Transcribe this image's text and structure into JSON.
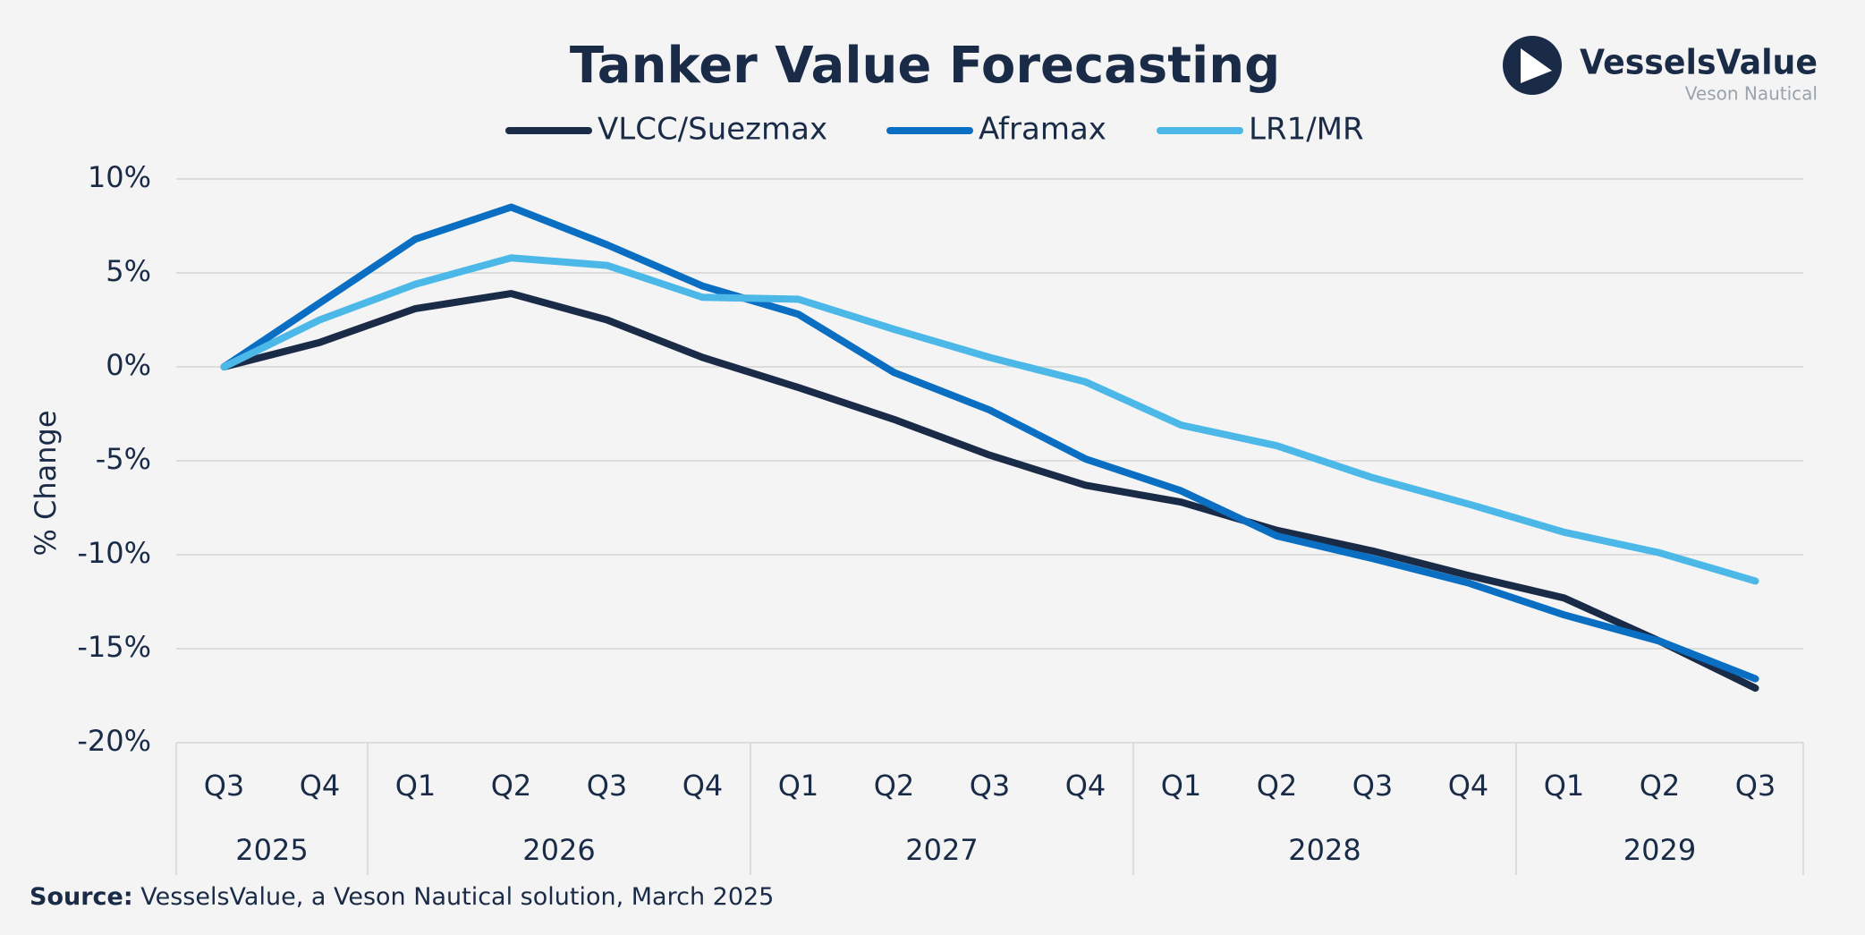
{
  "chart_data": {
    "type": "line",
    "title": "Tanker Value Forecasting",
    "y_label": "% Change",
    "categories": [
      "Q3",
      "Q4",
      "Q1",
      "Q2",
      "Q3",
      "Q4",
      "Q1",
      "Q2",
      "Q3",
      "Q4",
      "Q1",
      "Q2",
      "Q3",
      "Q4",
      "Q1",
      "Q2",
      "Q3"
    ],
    "category_years": [
      "2025",
      "2025",
      "2026",
      "2026",
      "2026",
      "2026",
      "2027",
      "2027",
      "2027",
      "2027",
      "2028",
      "2028",
      "2028",
      "2028",
      "2029",
      "2029",
      "2029"
    ],
    "series": [
      {
        "name": "VLCC/Suezmax",
        "color": "#1a2b48",
        "values": [
          0,
          1.3,
          3.1,
          3.9,
          2.5,
          0.5,
          -1.1,
          -2.8,
          -4.7,
          -6.3,
          -7.2,
          -8.7,
          -9.8,
          -11.1,
          -12.3,
          -14.6,
          -17.1
        ]
      },
      {
        "name": "Aframax",
        "color": "#0a6fc2",
        "values": [
          0,
          3.4,
          6.8,
          8.5,
          6.5,
          4.3,
          2.8,
          -0.3,
          -2.3,
          -4.9,
          -6.6,
          -9.0,
          -10.2,
          -11.5,
          -13.2,
          -14.6,
          -16.6
        ]
      },
      {
        "name": "LR1/MR",
        "color": "#4bb8e8",
        "values": [
          0,
          2.5,
          4.4,
          5.8,
          5.4,
          3.7,
          3.6,
          2.0,
          0.5,
          -0.8,
          -3.1,
          -4.2,
          -5.9,
          -7.3,
          -8.8,
          -9.9,
          -11.4
        ]
      }
    ],
    "ylim": [
      -20,
      10
    ],
    "yticks": [
      {
        "value": 10,
        "label": "10%"
      },
      {
        "value": 5,
        "label": "5%"
      },
      {
        "value": 0,
        "label": "0%"
      },
      {
        "value": -5,
        "label": "-5%"
      },
      {
        "value": -10,
        "label": "-10%"
      },
      {
        "value": -15,
        "label": "-15%"
      },
      {
        "value": -20,
        "label": "-20%"
      }
    ],
    "grid": true,
    "legend": "top",
    "source_label": "Source:",
    "source": "VesselsValue, a Veson Nautical solution, March 2025",
    "logo_name": "VesselsValue",
    "logo_sub": "Veson Nautical"
  }
}
